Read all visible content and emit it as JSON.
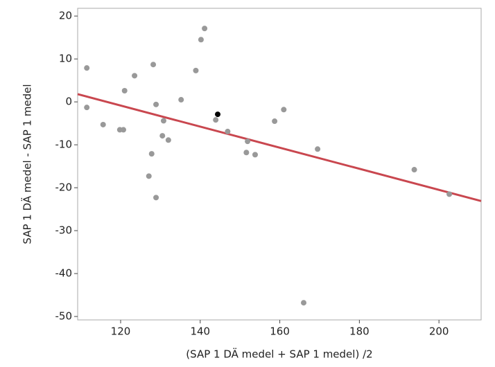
{
  "chart_data": {
    "type": "scatter",
    "x_label": "(SAP 1 DÄ medel + SAP 1 medel) /2",
    "y_label": "SAP 1 DÄ medel - SAP 1 medel",
    "xlim": [
      109.2,
      210.6
    ],
    "ylim": [
      -50.8,
      21.8
    ],
    "xticks": [
      120,
      140,
      160,
      180,
      200
    ],
    "yticks": [
      -50,
      -40,
      -30,
      -20,
      -10,
      0,
      10,
      20
    ],
    "grid": false,
    "series": [
      {
        "color": "#999999",
        "x": [
          111.5,
          111.5,
          115.6,
          119.8,
          120.7,
          121.0,
          123.5,
          128.2,
          128.9,
          130.8,
          130.5,
          132.0,
          127.8,
          127.1,
          128.9,
          135.2,
          138.9,
          140.2,
          141.1,
          143.9,
          146.9,
          151.9,
          151.6,
          153.8,
          158.7,
          161.0,
          169.5,
          166.0,
          193.8,
          202.6
        ],
        "values": [
          7.9,
          -1.3,
          -5.3,
          -6.5,
          -6.5,
          2.6,
          6.1,
          8.7,
          -0.6,
          -4.4,
          -7.9,
          -8.9,
          -12.1,
          -17.3,
          -22.3,
          0.5,
          7.3,
          14.5,
          17.1,
          -4.2,
          -6.9,
          -9.2,
          -11.8,
          -12.3,
          -4.5,
          -1.8,
          -11.0,
          -46.8,
          -15.8,
          -21.5
        ]
      },
      {
        "color": "#000000",
        "x": [
          144.4
        ],
        "values": [
          -2.9
        ]
      }
    ],
    "fit_line": {
      "color": "#c9474f",
      "x": [
        109.2,
        210.6
      ],
      "values": [
        1.8,
        -23.1
      ]
    }
  }
}
